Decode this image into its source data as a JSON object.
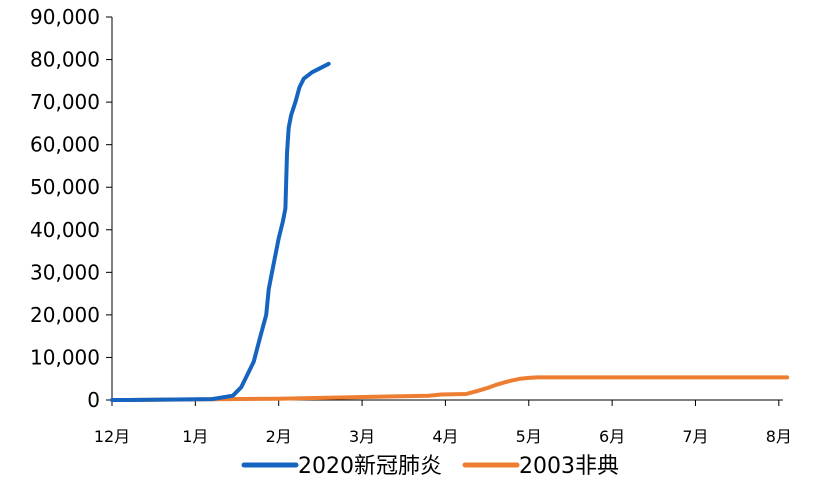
{
  "chart_data": {
    "type": "line",
    "title": "",
    "xlabel": "",
    "ylabel": "",
    "ylim": [
      0,
      90000
    ],
    "yticks": [
      0,
      10000,
      20000,
      30000,
      40000,
      50000,
      60000,
      70000,
      80000,
      90000
    ],
    "ytick_labels": [
      "0",
      "10,000",
      "20,000",
      "30,000",
      "40,000",
      "50,000",
      "60,000",
      "70,000",
      "80,000",
      "90,000"
    ],
    "x_unit": "month",
    "xlim": [
      0,
      8.05
    ],
    "xtick_labels": [
      "12月",
      "1月",
      "2月",
      "3月",
      "4月",
      "5月",
      "6月",
      "7月",
      "8月"
    ],
    "grid": false,
    "legend_position": "bottom",
    "colors": {
      "series_2020": "#1565c0",
      "series_2003": "#ed7d31",
      "axis": "#000000"
    },
    "series": [
      {
        "name": "2020新冠肺炎",
        "x": [
          0.0,
          0.15,
          1.2,
          1.45,
          1.55,
          1.6,
          1.7,
          1.78,
          1.85,
          1.88,
          1.92,
          2.0,
          2.05,
          2.08,
          2.1,
          2.12,
          2.15,
          2.2,
          2.25,
          2.3,
          2.4,
          2.5,
          2.6
        ],
        "values": [
          0,
          0,
          200,
          1000,
          3000,
          5000,
          9000,
          15000,
          20000,
          26000,
          30000,
          38000,
          42000,
          45000,
          58000,
          64000,
          67000,
          70000,
          73500,
          75500,
          77000,
          78000,
          79000
        ]
      },
      {
        "name": "2003非典",
        "x": [
          0.15,
          2.0,
          3.8,
          3.95,
          4.25,
          4.3,
          4.4,
          4.5,
          4.6,
          4.7,
          4.8,
          4.9,
          5.0,
          5.1,
          5.5,
          8.1
        ],
        "values": [
          0,
          300,
          1000,
          1300,
          1400,
          1700,
          2200,
          2800,
          3500,
          4100,
          4600,
          5000,
          5200,
          5300,
          5300,
          5300
        ]
      }
    ]
  }
}
